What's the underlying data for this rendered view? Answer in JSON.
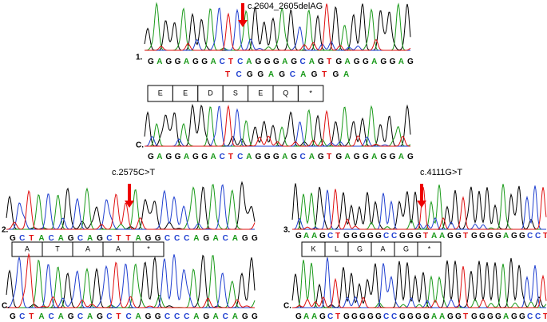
{
  "panels": [
    {
      "number": "1.",
      "mutation": "c.2604_2605delAG",
      "sequence": "GAGGAGGACTCAGGGAGCAGTGAGGAGGAG",
      "second_sequence": "TCGGAGCAGTGA",
      "amino_acids": [
        "E",
        "E",
        "D",
        "S",
        "E",
        "Q",
        "*"
      ],
      "control_label": "C.",
      "control_sequence": "GAGGAGGACTCAGGGAGCAGTGAGGAGGAG"
    },
    {
      "number": "2.",
      "mutation": "c.2575C>T",
      "sequence": "GCTACAGCAGCTTAGGCCCAGACAGG",
      "amino_acids": [
        "A",
        "T",
        "A",
        "A",
        "*"
      ],
      "control_label": "C.",
      "control_sequence": "GCTACAGCAGCTCAGGCCCAGACAGG"
    },
    {
      "number": "3.",
      "mutation": "c.4111G>T",
      "sequence": "GAAGCTGGGGGCCGGGTAAGGTGGGGAGGCCT",
      "amino_acids": [
        "K",
        "L",
        "G",
        "A",
        "G",
        "*"
      ],
      "control_label": "C.",
      "control_sequence": "GAAGCTGGGGGCCGGGGAAGGTGGGGAGGCCT"
    }
  ]
}
